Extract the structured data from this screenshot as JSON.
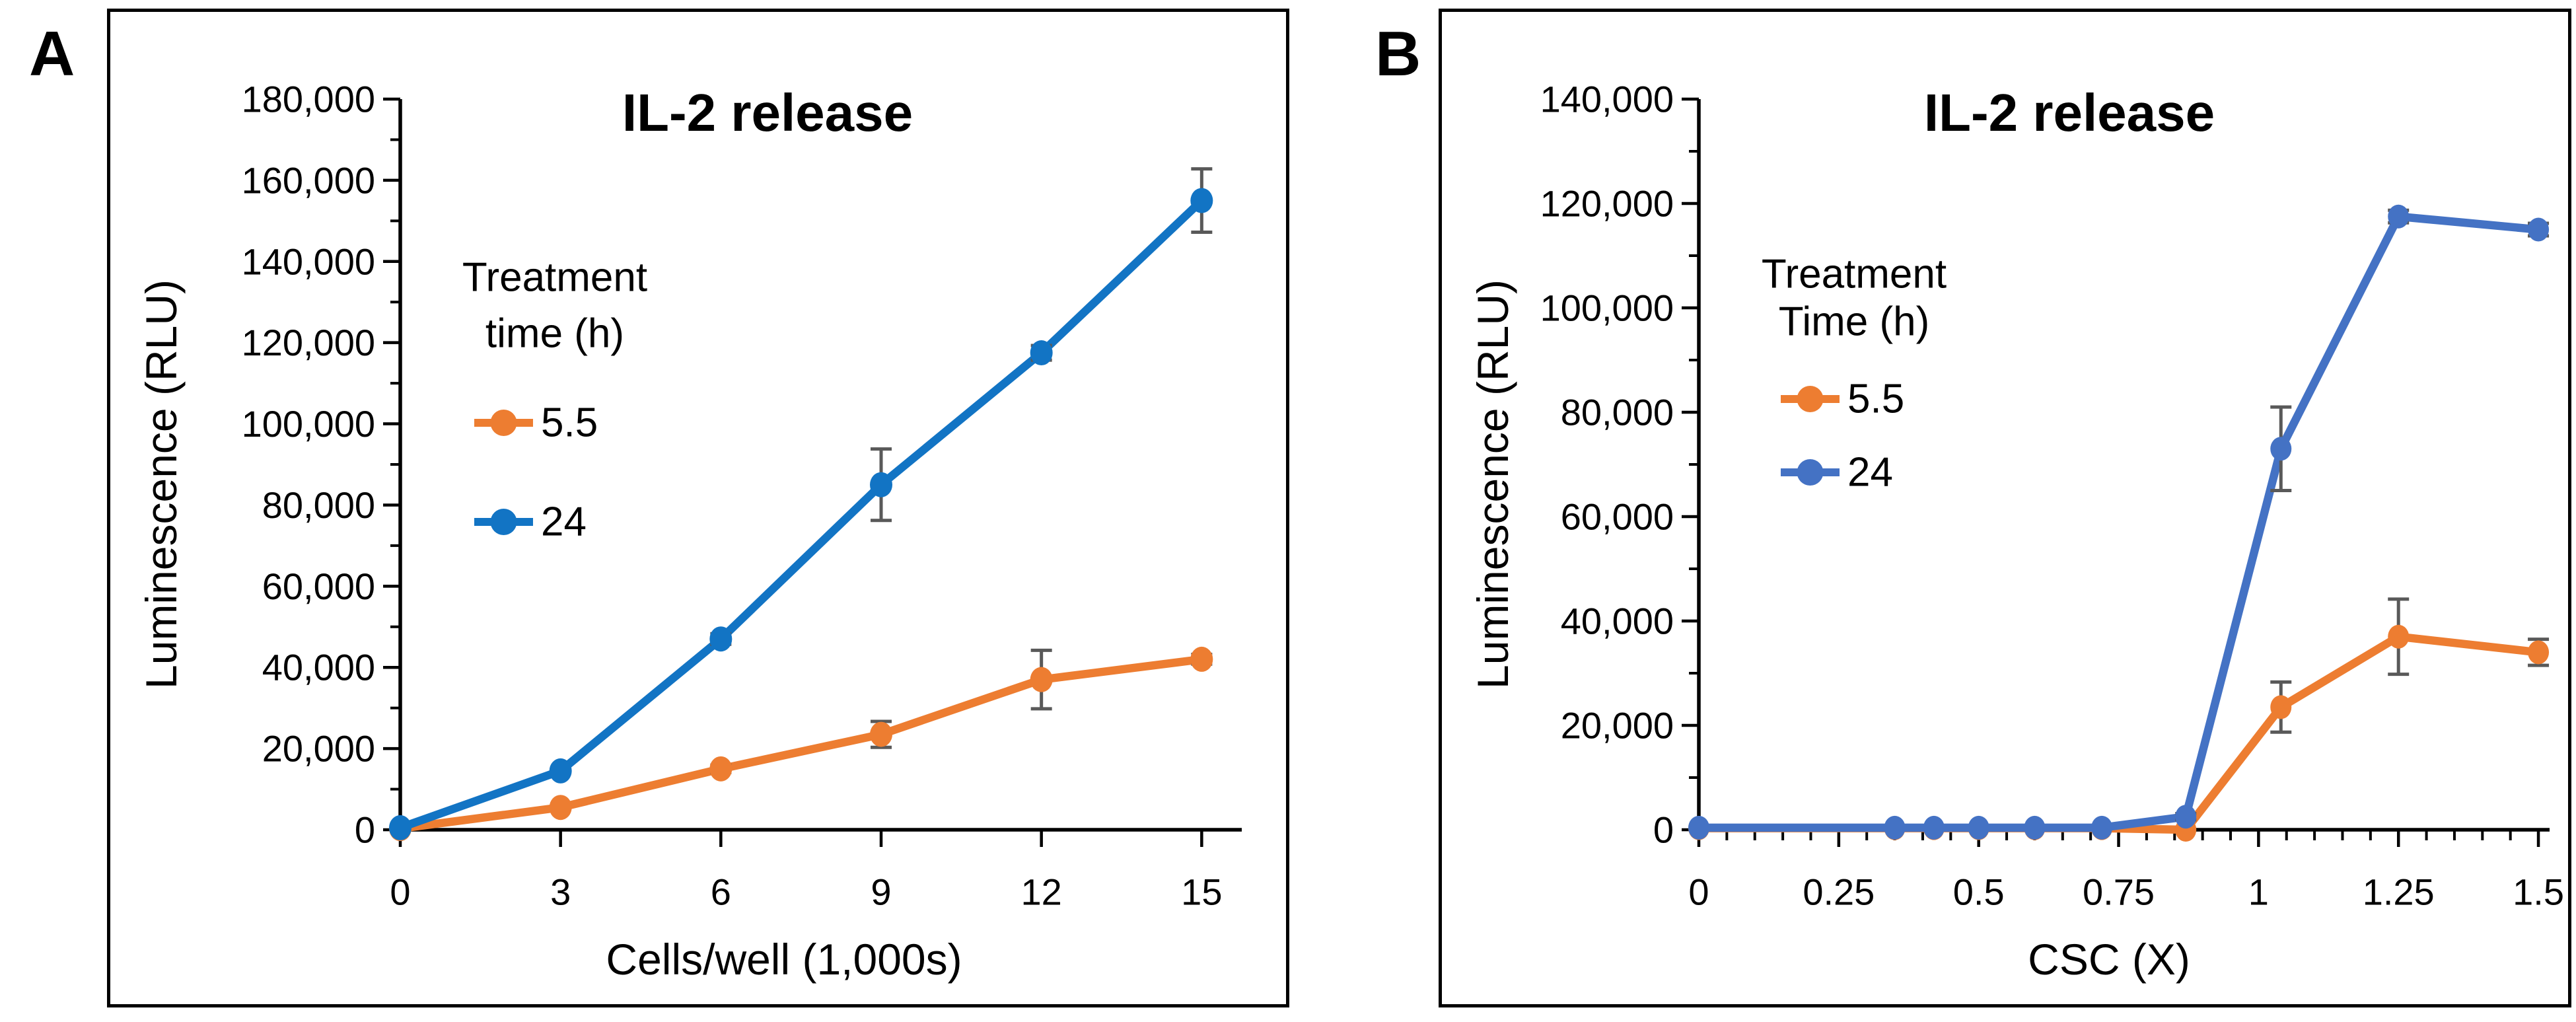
{
  "figure": {
    "background": "#FFFFFF",
    "panel_border_color": "#000000",
    "axis_color": "#000000",
    "text_color": "#000000"
  },
  "panels": [
    {
      "label": "A"
    },
    {
      "label": "B"
    }
  ],
  "chart_data": [
    {
      "type": "line",
      "panel": "A",
      "title": "IL-2 release",
      "xlabel": "Cells/well (1,000s)",
      "ylabel": "Luminescence (RLU)",
      "legend": {
        "title_lines": [
          "Treatment",
          "time (h)"
        ],
        "position": "upper-left-inside"
      },
      "xlim": [
        0,
        15.75
      ],
      "ylim": [
        0,
        180000
      ],
      "x_major_ticks": [
        0,
        3,
        6,
        9,
        12,
        15
      ],
      "x_minor_step": null,
      "y_major_step": 20000,
      "y_minor_step": 10000,
      "grid": false,
      "error_bar_color": "#595959",
      "series": [
        {
          "name": "5.5",
          "color": "#ED7D31",
          "x": [
            0,
            3,
            6,
            9,
            12,
            15
          ],
          "y": [
            300,
            5500,
            15000,
            23500,
            37000,
            42000
          ],
          "yerr": [
            0,
            500,
            900,
            3200,
            7200,
            1200
          ]
        },
        {
          "name": "24",
          "color": "#1274C4",
          "x": [
            0,
            3,
            6,
            9,
            12,
            15
          ],
          "y": [
            500,
            14500,
            47000,
            85000,
            117500,
            155000
          ],
          "yerr": [
            0,
            600,
            1300,
            8800,
            1800,
            7800
          ]
        }
      ]
    },
    {
      "type": "line",
      "panel": "B",
      "title": "IL-2 release",
      "xlabel": "CSC (X)",
      "ylabel": "Luminescence (RLU)",
      "legend": {
        "title_lines": [
          "Treatment",
          "Time (h)"
        ],
        "position": "upper-left-inside"
      },
      "xlim": [
        0,
        1.52
      ],
      "ylim": [
        0,
        140000
      ],
      "x_major_ticks": [
        0,
        0.25,
        0.5,
        0.75,
        1,
        1.25,
        1.5
      ],
      "x_minor_step": 0.05,
      "y_major_step": 20000,
      "y_minor_step": 10000,
      "grid": false,
      "error_bar_color": "#595959",
      "series": [
        {
          "name": "5.5",
          "color": "#ED7D31",
          "x": [
            0,
            0.35,
            0.42,
            0.5,
            0.6,
            0.72,
            0.87,
            1.04,
            1.25,
            1.5
          ],
          "y": [
            300,
            300,
            300,
            300,
            300,
            300,
            0,
            23500,
            37000,
            34000
          ],
          "yerr": [
            0,
            0,
            0,
            0,
            0,
            0,
            0,
            4800,
            7200,
            2500
          ]
        },
        {
          "name": "24",
          "color": "#4472C4",
          "x": [
            0,
            0.35,
            0.42,
            0.5,
            0.6,
            0.72,
            0.87,
            1.04,
            1.25,
            1.5
          ],
          "y": [
            400,
            400,
            400,
            400,
            400,
            400,
            2500,
            73000,
            117500,
            115000
          ],
          "yerr": [
            0,
            0,
            0,
            0,
            0,
            0,
            600,
            8000,
            1200,
            1200
          ]
        }
      ]
    }
  ]
}
